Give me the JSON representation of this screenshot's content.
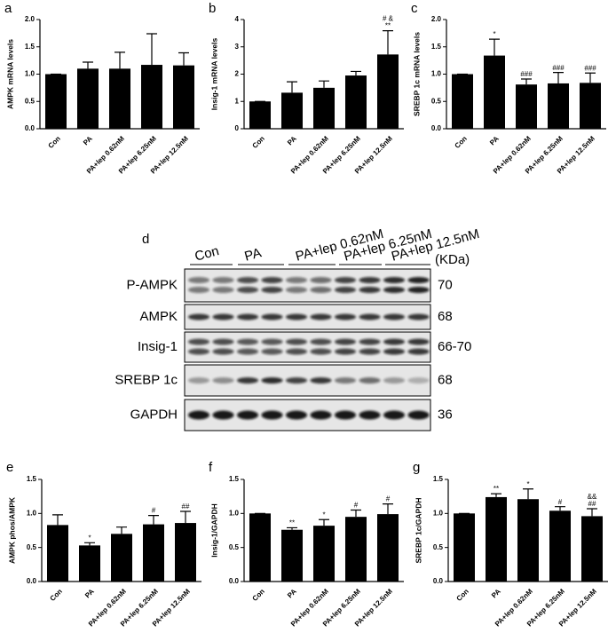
{
  "chart_data": [
    {
      "type": "bar",
      "panel": "a",
      "ylabel": "AMPK mRNA levels",
      "categories": [
        "Con",
        "PA",
        "PA+lep 0.62nM",
        "PA+lep 6.25nM",
        "PA+lep 12.5nM"
      ],
      "values": [
        1.0,
        1.1,
        1.1,
        1.17,
        1.16
      ],
      "errors": [
        0,
        0.12,
        0.3,
        0.57,
        0.23
      ],
      "annotations": [
        null,
        null,
        null,
        null,
        null
      ],
      "color": "#000000",
      "ylim": [
        0,
        2.0
      ],
      "yticks": [
        {
          "value": 0,
          "label": "0.0"
        },
        0.5,
        {
          "value": 1,
          "label": "1.0"
        },
        1.5,
        {
          "value": 2,
          "label": "2.0"
        }
      ]
    },
    {
      "type": "bar",
      "panel": "b",
      "ylabel": "Insig-1 mRNA levels",
      "categories": [
        "Con",
        "PA",
        "PA+lep 0.62nM",
        "PA+lep 6.25nM",
        "PA+lep 12.5nM"
      ],
      "values": [
        1.0,
        1.32,
        1.5,
        1.95,
        2.72
      ],
      "errors": [
        0,
        0.4,
        0.25,
        0.15,
        0.87
      ],
      "annotations": [
        null,
        null,
        null,
        null,
        [
          "**",
          "# &"
        ]
      ],
      "color": "#000000",
      "ylim": [
        0,
        4
      ],
      "yticks": [
        0,
        1,
        2,
        3,
        4
      ]
    },
    {
      "type": "bar",
      "panel": "c",
      "ylabel": "SREBP 1c mRNA levels",
      "categories": [
        "Con",
        "PA",
        "PA+lep 0.62nM",
        "PA+lep 6.25nM",
        "PA+lep 12.5nM"
      ],
      "values": [
        1.0,
        1.34,
        0.81,
        0.83,
        0.84
      ],
      "errors": [
        0,
        0.3,
        0.1,
        0.2,
        0.18
      ],
      "annotations": [
        null,
        [
          "*"
        ],
        [
          "###"
        ],
        [
          "###"
        ],
        [
          "###"
        ]
      ],
      "color": "#000000",
      "ylim": [
        0,
        2.0
      ],
      "yticks": [
        {
          "value": 0,
          "label": "0.0"
        },
        0.5,
        {
          "value": 1,
          "label": "1.0"
        },
        1.5,
        {
          "value": 2,
          "label": "2.0"
        }
      ]
    },
    {
      "type": "bar",
      "panel": "e",
      "ylabel": "AMPK phos/AMPK",
      "categories": [
        "Con",
        "PA",
        "PA+lep 0.62nM",
        "PA+lep 6.25nM",
        "PA+lep 12.5nM"
      ],
      "values": [
        0.83,
        0.53,
        0.7,
        0.84,
        0.86
      ],
      "errors": [
        0.15,
        0.04,
        0.1,
        0.13,
        0.17
      ],
      "annotations": [
        null,
        [
          "*"
        ],
        null,
        [
          "#"
        ],
        [
          "##"
        ]
      ],
      "color": "#000000",
      "ylim": [
        0,
        1.5
      ],
      "yticks": [
        {
          "value": 0,
          "label": "0.0"
        },
        0.5,
        {
          "value": 1,
          "label": "1.0"
        },
        1.5
      ]
    },
    {
      "type": "bar",
      "panel": "f",
      "ylabel": "Insig-1/GAPDH",
      "categories": [
        "Con",
        "PA",
        "PA+lep 0.62nM",
        "PA+lep 6.25nM",
        "PA+lep 12.5nM"
      ],
      "values": [
        1.0,
        0.76,
        0.82,
        0.95,
        0.99
      ],
      "errors": [
        0,
        0.03,
        0.09,
        0.1,
        0.15
      ],
      "annotations": [
        null,
        [
          "**"
        ],
        [
          "*"
        ],
        [
          "#"
        ],
        [
          "#"
        ]
      ],
      "color": "#000000",
      "ylim": [
        0,
        1.5
      ],
      "yticks": [
        {
          "value": 0,
          "label": "0.0"
        },
        0.5,
        {
          "value": 1,
          "label": "1.0"
        },
        1.5
      ]
    },
    {
      "type": "bar",
      "panel": "g",
      "ylabel": "SREBP 1c/GAPDH",
      "categories": [
        "Con",
        "PA",
        "PA+lep 0.62nM",
        "PA+lep 6.25nM",
        "PA+lep 12.5nM"
      ],
      "values": [
        1.0,
        1.24,
        1.21,
        1.04,
        0.96
      ],
      "errors": [
        0,
        0.05,
        0.15,
        0.06,
        0.11
      ],
      "annotations": [
        null,
        [
          "**"
        ],
        [
          "*"
        ],
        [
          "#"
        ],
        [
          "##",
          "&&"
        ]
      ],
      "color": "#000000",
      "ylim": [
        0,
        1.5
      ],
      "yticks": [
        {
          "value": 0,
          "label": "0.0"
        },
        0.5,
        {
          "value": 1,
          "label": "1.0"
        },
        1.5
      ]
    }
  ],
  "blot": {
    "panel": "d",
    "lanes": [
      "Con",
      "PA",
      "PA+lep 0.62nM",
      "PA+lep 6.25nM",
      "PA+lep 12.5nM"
    ],
    "unit": "(KDa)",
    "rows": [
      {
        "label": "P-AMPK",
        "kda": "70"
      },
      {
        "label": "AMPK",
        "kda": "68"
      },
      {
        "label": "Insig-1",
        "kda": "66-70"
      },
      {
        "label": "SREBP 1c",
        "kda": "68"
      },
      {
        "label": "GAPDH",
        "kda": "36"
      }
    ]
  }
}
